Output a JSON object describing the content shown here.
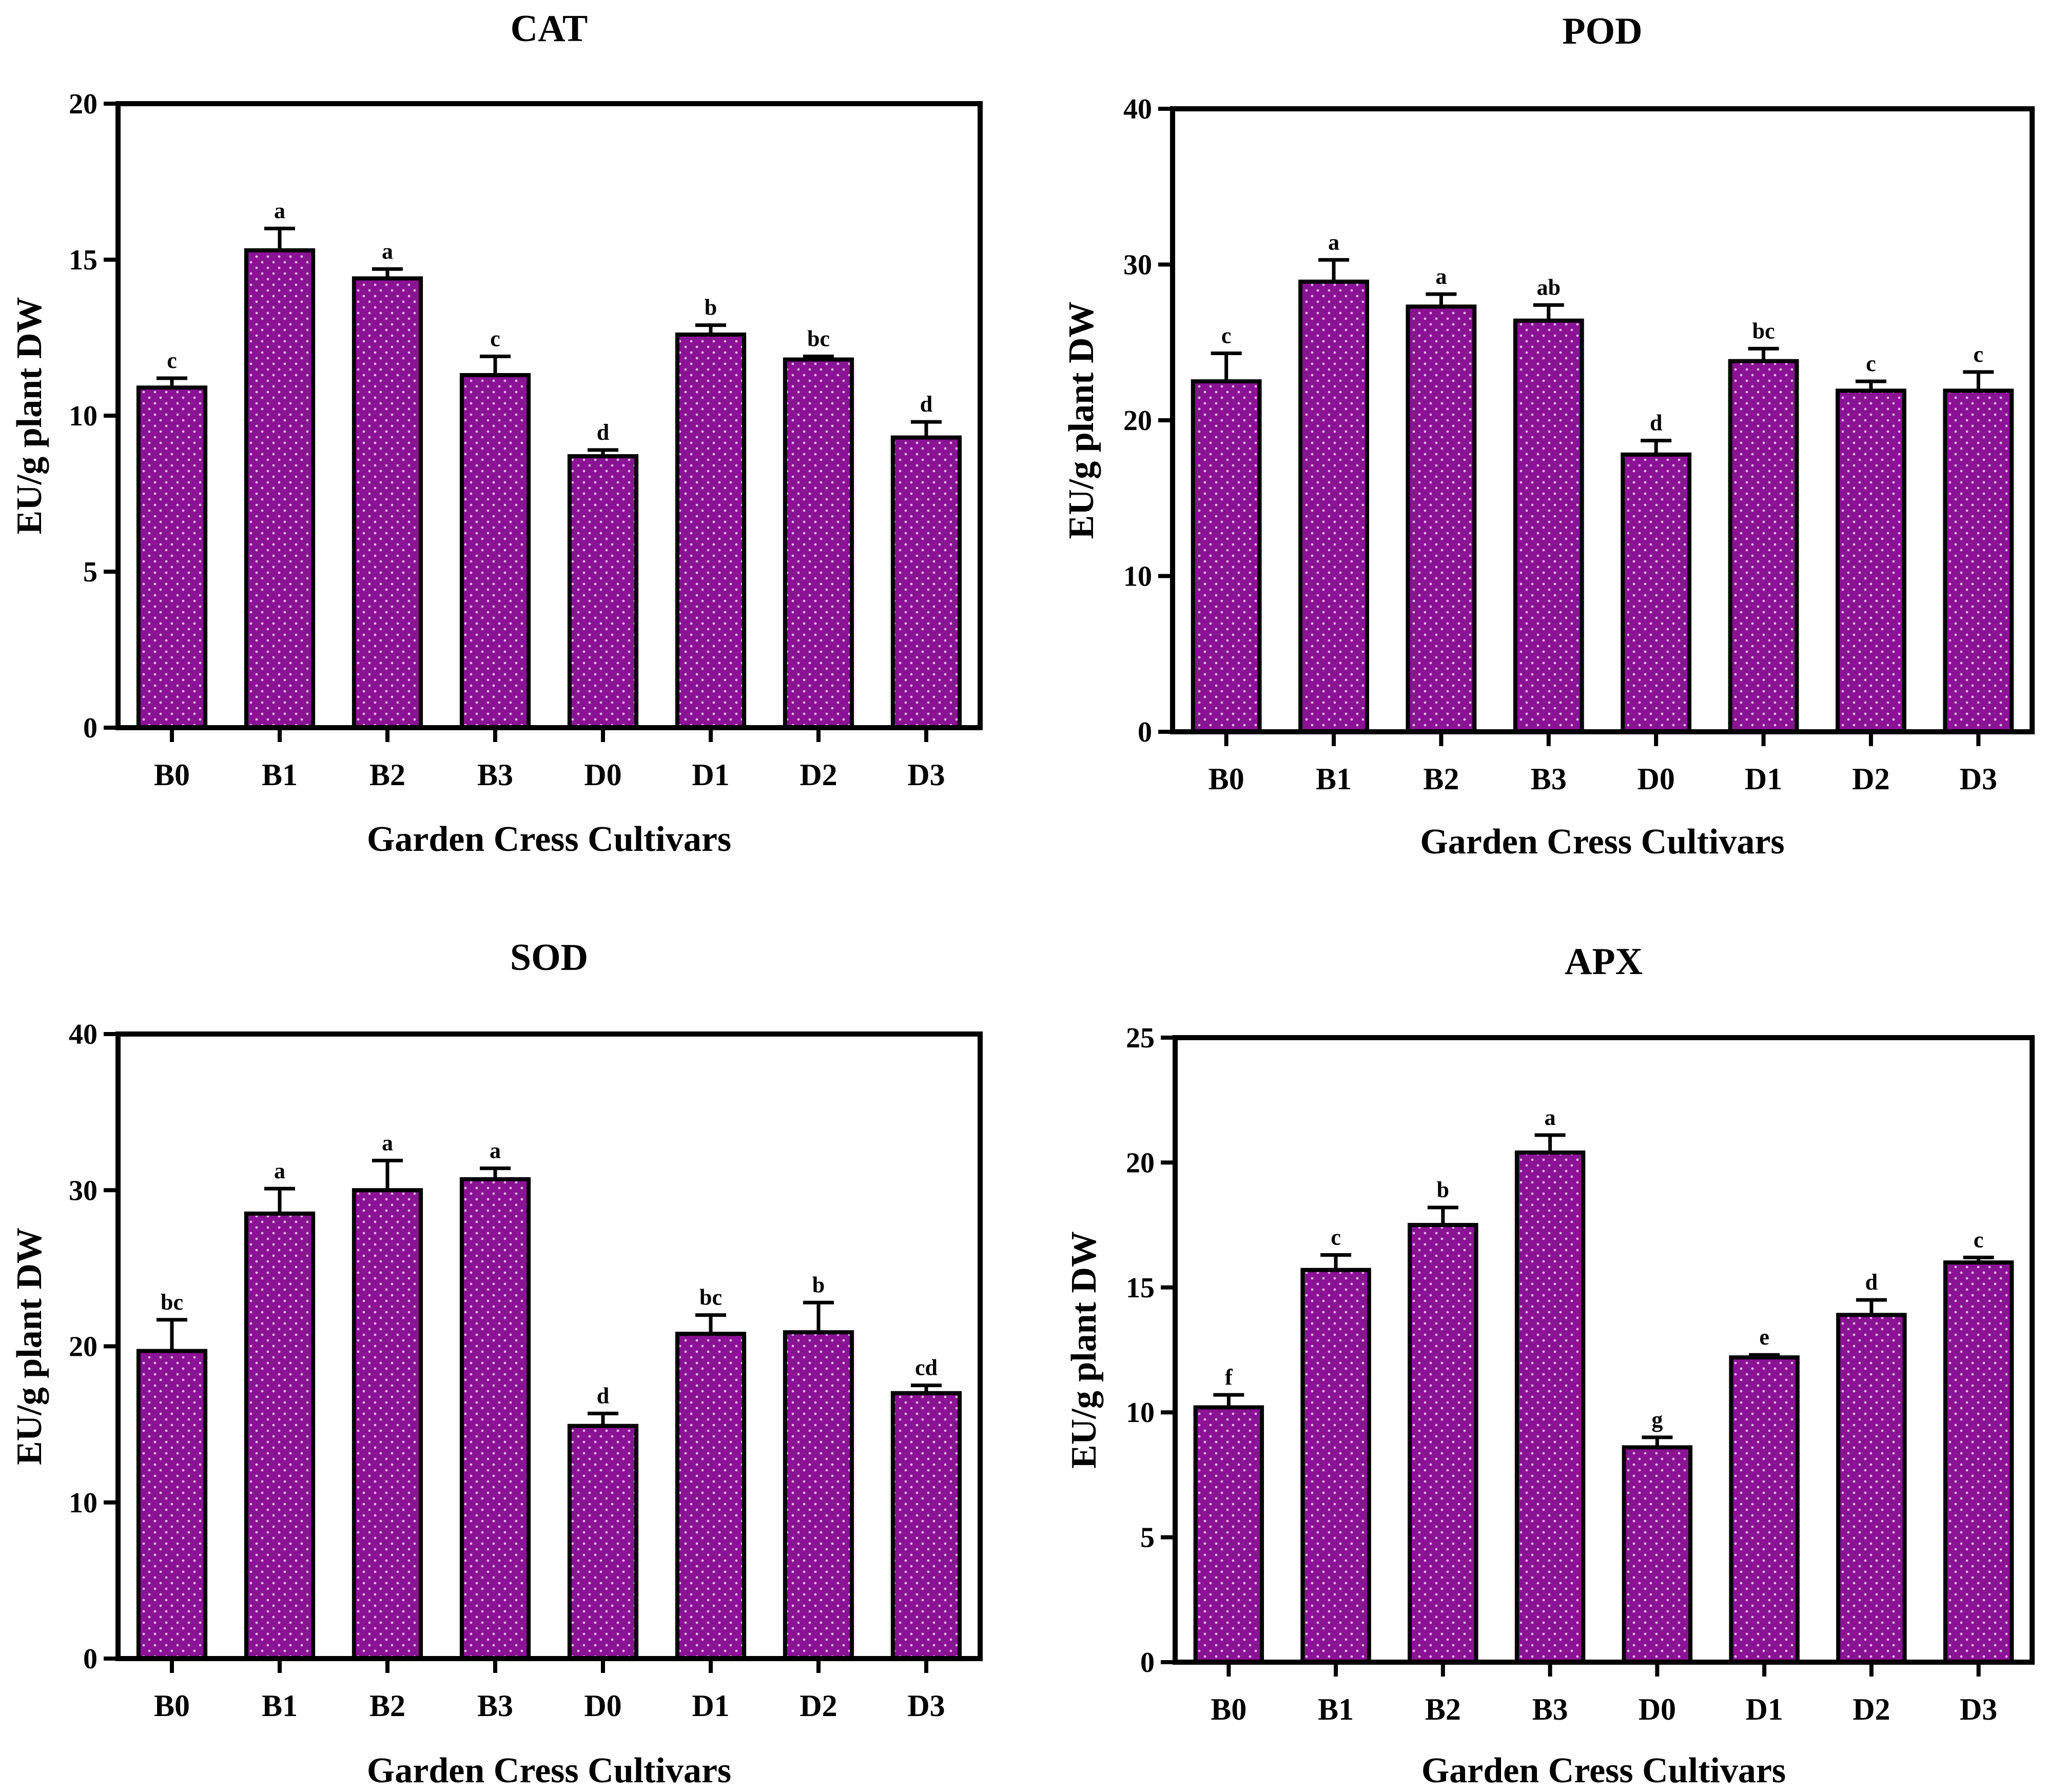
{
  "colors": {
    "bar_fill": "#8a1294",
    "bar_dot": "#e8b8ee",
    "outline": "#000000"
  },
  "chart_data": [
    {
      "type": "bar",
      "title": "CAT",
      "xlabel": "Garden Cress Cultivars",
      "ylabel": "EU/g plant DW",
      "ylim": [
        0,
        20
      ],
      "yticks": [
        0,
        5,
        10,
        15,
        20
      ],
      "categories": [
        "B0",
        "B1",
        "B2",
        "B3",
        "D0",
        "D1",
        "D2",
        "D3"
      ],
      "values": [
        10.9,
        15.3,
        14.4,
        11.3,
        8.7,
        12.6,
        11.8,
        9.3
      ],
      "errors": [
        0.3,
        0.7,
        0.3,
        0.6,
        0.2,
        0.3,
        0.1,
        0.5
      ],
      "labels": [
        "c",
        "a",
        "a",
        "c",
        "d",
        "b",
        "bc",
        "d"
      ]
    },
    {
      "type": "bar",
      "title": "POD",
      "xlabel": "Garden Cress Cultivars",
      "ylabel": "EU/g plant DW",
      "ylim": [
        0,
        40
      ],
      "yticks": [
        0,
        10,
        20,
        30,
        40
      ],
      "categories": [
        "B0",
        "B1",
        "B2",
        "B3",
        "D0",
        "D1",
        "D2",
        "D3"
      ],
      "values": [
        22.5,
        28.9,
        27.3,
        26.4,
        17.8,
        23.8,
        21.9,
        21.9
      ],
      "errors": [
        1.8,
        1.4,
        0.8,
        1.0,
        0.9,
        0.8,
        0.6,
        1.2
      ],
      "labels": [
        "c",
        "a",
        "a",
        "ab",
        "d",
        "bc",
        "c",
        "c"
      ]
    },
    {
      "type": "bar",
      "title": "SOD",
      "xlabel": "Garden Cress Cultivars",
      "ylabel": "EU/g plant DW",
      "ylim": [
        0,
        40
      ],
      "yticks": [
        0,
        10,
        20,
        30,
        40
      ],
      "categories": [
        "B0",
        "B1",
        "B2",
        "B3",
        "D0",
        "D1",
        "D2",
        "D3"
      ],
      "values": [
        19.7,
        28.5,
        30.0,
        30.7,
        14.9,
        20.8,
        20.9,
        17.0
      ],
      "errors": [
        2.0,
        1.6,
        1.9,
        0.7,
        0.8,
        1.2,
        1.9,
        0.5
      ],
      "labels": [
        "bc",
        "a",
        "a",
        "a",
        "d",
        "bc",
        "b",
        "cd"
      ]
    },
    {
      "type": "bar",
      "title": "APX",
      "xlabel": "Garden Cress Cultivars",
      "ylabel": "EU/g plant DW",
      "ylim": [
        0,
        25
      ],
      "yticks": [
        0,
        5,
        10,
        15,
        20,
        25
      ],
      "categories": [
        "B0",
        "B1",
        "B2",
        "B3",
        "D0",
        "D1",
        "D2",
        "D3"
      ],
      "values": [
        10.2,
        15.7,
        17.5,
        20.4,
        8.6,
        12.2,
        13.9,
        16.0
      ],
      "errors": [
        0.5,
        0.6,
        0.7,
        0.7,
        0.4,
        0.1,
        0.6,
        0.2
      ],
      "labels": [
        "f",
        "c",
        "b",
        "a",
        "g",
        "e",
        "d",
        "c"
      ]
    }
  ]
}
